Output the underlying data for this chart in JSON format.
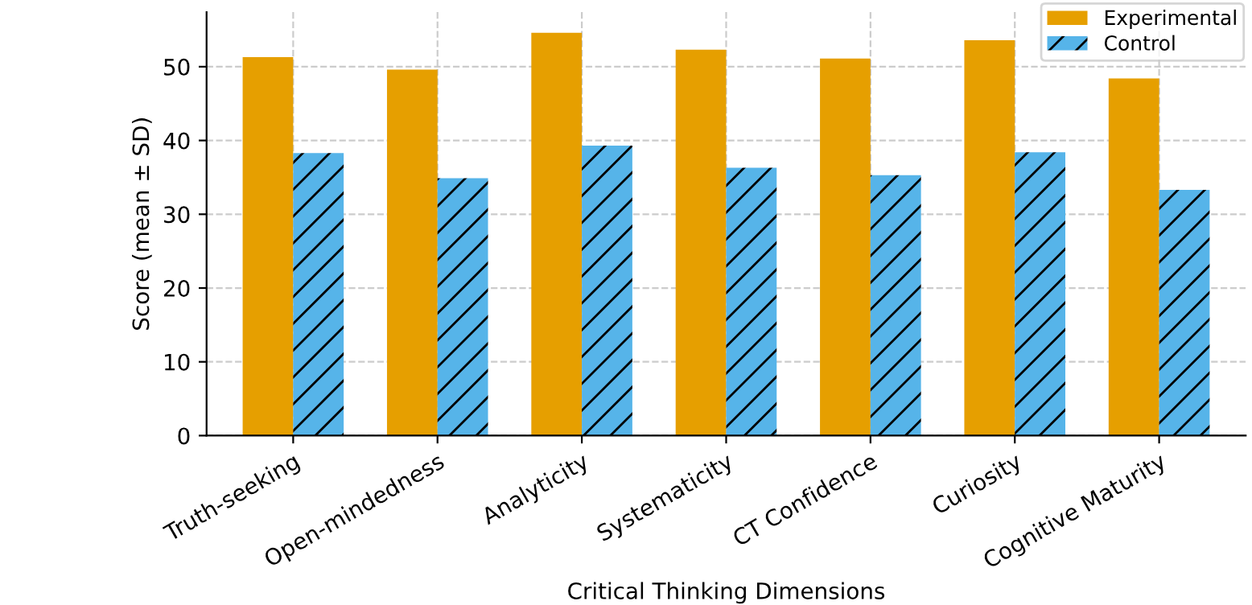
{
  "chart_data": {
    "type": "bar",
    "xlabel": "Critical Thinking Dimensions",
    "ylabel": "Score (mean ± SD)",
    "categories": [
      "Truth-seeking",
      "Open-mindedness",
      "Analyticity",
      "Systematicity",
      "CT Confidence",
      "Curiosity",
      "Cognitive Maturity"
    ],
    "series": [
      {
        "name": "Experimental",
        "color": "#e69f00",
        "values": [
          51.3,
          49.6,
          54.6,
          52.3,
          51.1,
          53.6,
          48.4
        ]
      },
      {
        "name": "Control",
        "color": "#56b4e9",
        "values": [
          38.3,
          34.9,
          39.3,
          36.3,
          35.3,
          38.4,
          33.3
        ]
      }
    ],
    "ylim": [
      0,
      57.4
    ],
    "yticks": [
      0,
      10,
      20,
      30,
      40,
      50
    ],
    "grid": true,
    "legend": "top right"
  }
}
